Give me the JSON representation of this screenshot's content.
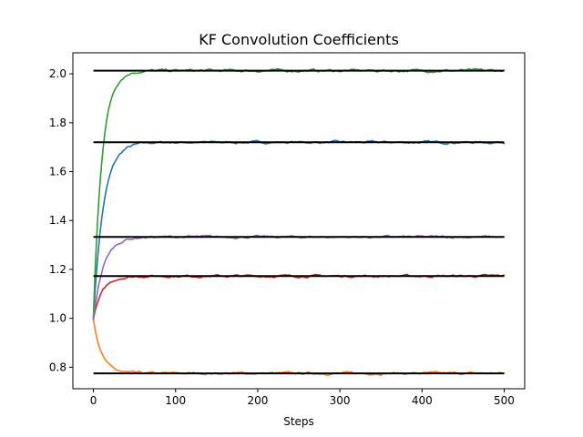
{
  "chart_data": {
    "type": "line",
    "title": "KF Convolution Coefficients",
    "xlabel": "Steps",
    "ylabel": "",
    "xlim": [
      -25,
      525
    ],
    "ylim": [
      0.712,
      2.086
    ],
    "xticks": [
      0,
      100,
      200,
      300,
      400,
      500
    ],
    "xtick_labels": [
      "0",
      "100",
      "200",
      "300",
      "400",
      "500"
    ],
    "yticks": [
      0.8,
      1.0,
      1.2,
      1.4,
      1.6,
      1.8,
      2.0
    ],
    "ytick_labels": [
      "0.8",
      "1.0",
      "1.2",
      "1.4",
      "1.6",
      "1.8",
      "2.0"
    ],
    "grid": false,
    "reference_lines": [
      {
        "y": 2.013,
        "x": [
          0,
          500
        ],
        "color": "#000000"
      },
      {
        "y": 1.72,
        "x": [
          0,
          500
        ],
        "color": "#000000"
      },
      {
        "y": 1.333,
        "x": [
          0,
          500
        ],
        "color": "#000000"
      },
      {
        "y": 1.173,
        "x": [
          0,
          500
        ],
        "color": "#000000"
      },
      {
        "y": 0.775,
        "x": [
          0,
          500
        ],
        "color": "#000000"
      }
    ],
    "series": [
      {
        "color": "#1f77b4",
        "start": 1.0,
        "target": 1.72,
        "rise_steps": 12,
        "noise": 0.0035
      },
      {
        "color": "#ff7f0e",
        "start": 1.0,
        "target": 0.775,
        "rise_steps": 10,
        "noise": 0.0035
      },
      {
        "color": "#2ca02c",
        "start": 1.0,
        "target": 2.013,
        "rise_steps": 10,
        "noise": 0.004
      },
      {
        "color": "#d62728",
        "start": 1.0,
        "target": 1.173,
        "rise_steps": 11,
        "noise": 0.0035
      },
      {
        "color": "#9467bd",
        "start": 1.0,
        "target": 1.333,
        "rise_steps": 12,
        "noise": 0.0035
      }
    ]
  }
}
